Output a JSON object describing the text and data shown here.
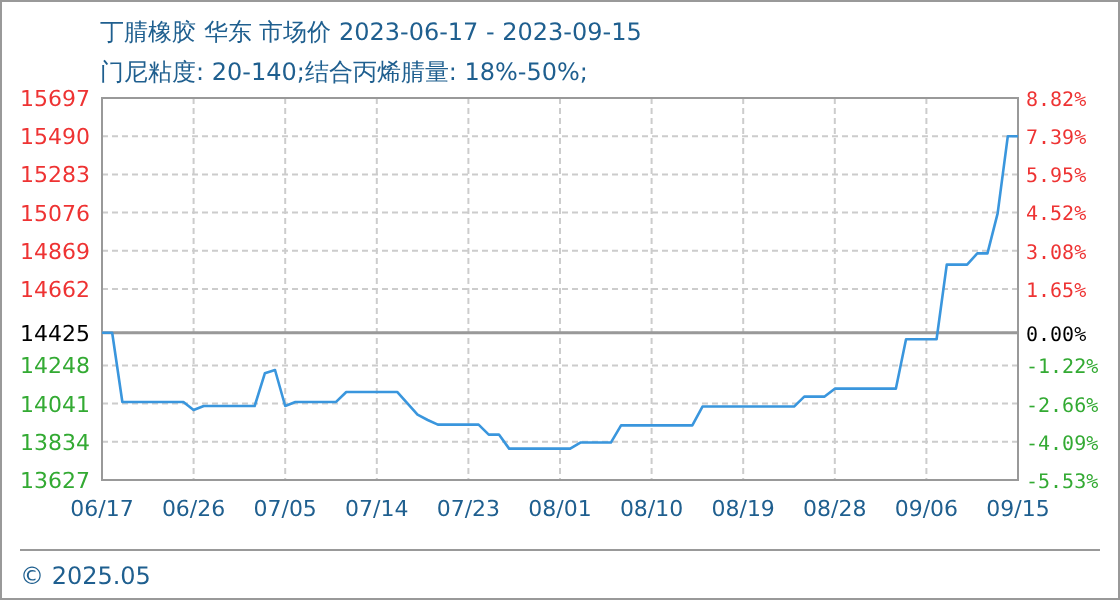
{
  "chart_data": {
    "type": "line",
    "title": "丁腈橡胶 华东 市场价 2023-06-17 - 2023-09-15",
    "subtitle": "门尼粘度: 20-140;结合丙烯腈量: 18%-50%;",
    "annotations": [
      "© 2025.05"
    ],
    "x": [
      "2023-06-17",
      "2023-06-18",
      "2023-06-19",
      "2023-06-25",
      "2023-06-26",
      "2023-06-27",
      "2023-07-02",
      "2023-07-03",
      "2023-07-04",
      "2023-07-05",
      "2023-07-06",
      "2023-07-10",
      "2023-07-11",
      "2023-07-16",
      "2023-07-18",
      "2023-07-19",
      "2023-07-20",
      "2023-07-24",
      "2023-07-25",
      "2023-07-26",
      "2023-07-27",
      "2023-08-02",
      "2023-08-03",
      "2023-08-06",
      "2023-08-07",
      "2023-08-14",
      "2023-08-15",
      "2023-08-24",
      "2023-08-25",
      "2023-08-27",
      "2023-08-28",
      "2023-09-03",
      "2023-09-04",
      "2023-09-07",
      "2023-09-08",
      "2023-09-10",
      "2023-09-11",
      "2023-09-12",
      "2023-09-13",
      "2023-09-14",
      "2023-09-15"
    ],
    "series": [
      {
        "color": "#3a96dd",
        "values": [
          14425,
          14425,
          14050,
          14050,
          14006,
          14028,
          14028,
          14205,
          14223,
          14028,
          14050,
          14050,
          14104,
          14104,
          13981,
          13952,
          13927,
          13927,
          13873,
          13873,
          13797,
          13797,
          13830,
          13830,
          13923,
          13923,
          14025,
          14025,
          14079,
          14079,
          14122,
          14122,
          14390,
          14390,
          14794,
          14794,
          14855,
          14855,
          15072,
          15490,
          15490
        ]
      }
    ],
    "xlim": [
      "2023-06-17",
      "2023-09-15"
    ],
    "xticks": [
      {
        "value": "2023-06-17",
        "label": "06/17"
      },
      {
        "value": "2023-06-26",
        "label": "06/26"
      },
      {
        "value": "2023-07-05",
        "label": "07/05"
      },
      {
        "value": "2023-07-14",
        "label": "07/14"
      },
      {
        "value": "2023-07-23",
        "label": "07/23"
      },
      {
        "value": "2023-08-01",
        "label": "08/01"
      },
      {
        "value": "2023-08-10",
        "label": "08/10"
      },
      {
        "value": "2023-08-19",
        "label": "08/19"
      },
      {
        "value": "2023-08-28",
        "label": "08/28"
      },
      {
        "value": "2023-09-06",
        "label": "09/06"
      },
      {
        "value": "2023-09-15",
        "label": "09/15"
      }
    ],
    "ylim": [
      13627,
      15697
    ],
    "yticks": [
      13627,
      13834,
      14041,
      14248,
      14425,
      14662,
      14869,
      15076,
      15283,
      15490,
      15697
    ],
    "y2lim": [
      -5.53,
      8.82
    ],
    "y2ticks": [
      {
        "value": -5.53,
        "label": "-5.53%"
      },
      {
        "value": -4.09,
        "label": "-4.09%"
      },
      {
        "value": -2.66,
        "label": "-2.66%"
      },
      {
        "value": -1.22,
        "label": "-1.22%"
      },
      {
        "value": 0,
        "label": "0.00%"
      },
      {
        "value": 1.65,
        "label": "1.65%"
      },
      {
        "value": 3.08,
        "label": "3.08%"
      },
      {
        "value": 4.52,
        "label": "4.52%"
      },
      {
        "value": 5.95,
        "label": "5.95%"
      },
      {
        "value": 7.39,
        "label": "7.39%"
      },
      {
        "value": 8.82,
        "label": "8.82%"
      }
    ],
    "ref_lines": [
      {
        "axis": "y",
        "value": 14425,
        "color": "#999999"
      }
    ],
    "grid": true,
    "marker": "none",
    "line_style": "solid"
  }
}
